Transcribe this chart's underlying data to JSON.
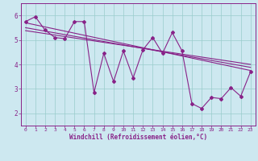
{
  "xlabel": "Windchill (Refroidissement éolien,°C)",
  "bg_color": "#cde8f0",
  "line_color": "#882288",
  "grid_color": "#99cccc",
  "xlim": [
    -0.5,
    23.5
  ],
  "ylim": [
    1.5,
    6.5
  ],
  "yticks": [
    2,
    3,
    4,
    5,
    6
  ],
  "xticks": [
    0,
    1,
    2,
    3,
    4,
    5,
    6,
    7,
    8,
    9,
    10,
    11,
    12,
    13,
    14,
    15,
    16,
    17,
    18,
    19,
    20,
    21,
    22,
    23
  ],
  "series1_x": [
    0,
    1,
    2,
    3,
    4,
    5,
    6,
    7,
    8,
    9,
    10,
    11,
    12,
    13,
    14,
    15,
    16,
    17,
    18,
    19,
    20,
    21,
    22,
    23
  ],
  "series1_y": [
    5.75,
    5.95,
    5.4,
    5.1,
    5.05,
    5.75,
    5.75,
    2.85,
    4.45,
    3.3,
    4.55,
    3.45,
    4.6,
    5.1,
    4.45,
    5.3,
    4.55,
    2.4,
    2.2,
    2.65,
    2.6,
    3.05,
    2.7,
    3.7
  ],
  "series2_x": [
    0,
    23
  ],
  "series2_y": [
    5.7,
    3.75
  ],
  "series3_x": [
    0,
    23
  ],
  "series3_y": [
    5.5,
    3.88
  ],
  "series4_x": [
    0,
    23
  ],
  "series4_y": [
    5.38,
    4.0
  ]
}
